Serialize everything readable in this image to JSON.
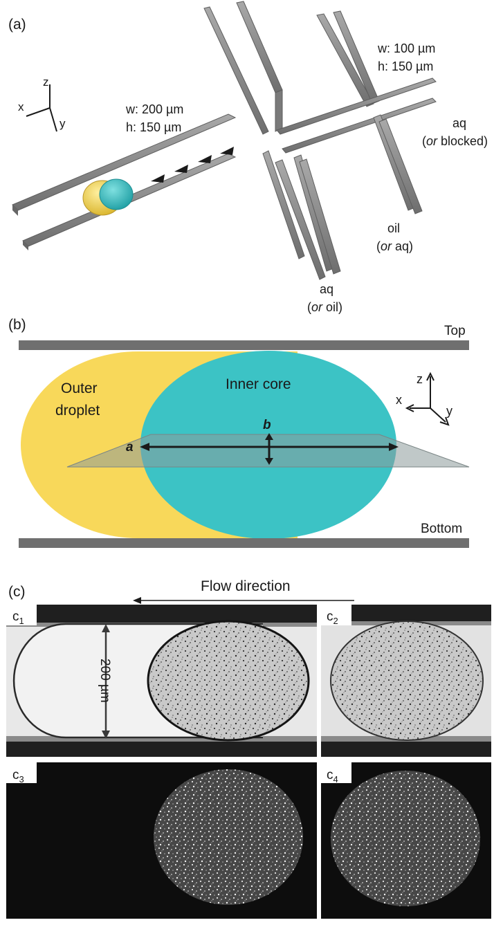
{
  "panel_a": {
    "label": "(a)",
    "wide_channel": {
      "w": "w: 200 µm",
      "h": "h: 150 µm"
    },
    "narrow_channel": {
      "w": "w: 100 µm",
      "h": "h: 150 µm"
    },
    "axes": {
      "x": "x",
      "y": "y",
      "z": "z"
    },
    "inlet_right": {
      "line1": "aq",
      "line2_open": "(",
      "line2_em": "or",
      "line2_rest": " blocked)"
    },
    "inlet_oil": {
      "line1": "oil",
      "line2_open": "(",
      "line2_em": "or",
      "line2_rest": " aq)"
    },
    "inlet_bottom": {
      "line1": "aq",
      "line2_open": "(",
      "line2_em": "or",
      "line2_rest": " oil)"
    }
  },
  "panel_b": {
    "label": "(b)",
    "top": "Top",
    "bottom": "Bottom",
    "outer_line1": "Outer",
    "outer_line2": "droplet",
    "inner": "Inner core",
    "dim_a": "a",
    "dim_b": "b",
    "axes": {
      "x": "x",
      "y": "y",
      "z": "z"
    },
    "colors": {
      "outer": "#f7d754",
      "inner": "#3cc4c6",
      "wall": "#6f6f6f"
    }
  },
  "panel_c": {
    "label": "(c)",
    "flow": "Flow direction",
    "scale": "200 µm",
    "c1": "c",
    "c1_sub": "1",
    "c2": "c",
    "c2_sub": "2",
    "c3": "c",
    "c3_sub": "3",
    "c4": "c",
    "c4_sub": "4"
  }
}
